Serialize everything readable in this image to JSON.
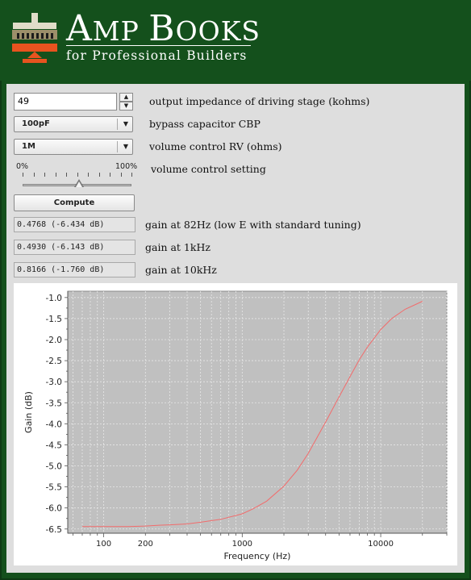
{
  "header": {
    "brand_cap1": "A",
    "brand_rest1": "MP",
    "brand_cap2": "B",
    "brand_rest2": "OOKS",
    "tagline": "for Professional Builders"
  },
  "inputs": {
    "impedance_value": "49",
    "impedance_label": "output impedance of driving stage (kohms)",
    "bypass_value": "100pF",
    "bypass_label": "bypass capacitor CBP",
    "volume_value": "1M",
    "volume_label": "volume control RV (ohms)",
    "slider_min": "0%",
    "slider_max": "100%",
    "slider_label": "volume control setting",
    "slider_position": 0.52
  },
  "compute_label": "Compute",
  "results": [
    {
      "value": "0.4768 (-6.434 dB)",
      "label": "gain at 82Hz (low E with standard tuning)"
    },
    {
      "value": "0.4930 (-6.143 dB)",
      "label": "gain at 1kHz"
    },
    {
      "value": "0.8166 (-1.760 dB)",
      "label": "gain at 10kHz"
    }
  ],
  "colors": {
    "brand_green": "#14501c",
    "logo_orange": "#e8531f",
    "plot_bg": "#c0c0c0",
    "line": "#f26b6b"
  },
  "chart_data": {
    "type": "line",
    "xlabel": "Frequency (Hz)",
    "ylabel": "Gain (dB)",
    "x_scale": "log",
    "xlim": [
      55,
      30000
    ],
    "ylim": [
      -6.6,
      -0.85
    ],
    "x_ticks": [
      100,
      200,
      1000,
      10000
    ],
    "x_tick_labels": [
      "100",
      "200",
      "1000",
      "10000"
    ],
    "y_ticks": [
      -1.0,
      -1.5,
      -2.0,
      -2.5,
      -3.0,
      -3.5,
      -4.0,
      -4.5,
      -5.0,
      -5.5,
      -6.0,
      -6.5
    ],
    "y_tick_labels": [
      "-1.0",
      "-1.5",
      "-2.0",
      "-2.5",
      "-3.0",
      "-3.5",
      "-4.0",
      "-4.5",
      "-5.0",
      "-5.5",
      "-6.0",
      "-6.5"
    ],
    "grid": true,
    "series": [
      {
        "x": [
          70,
          100,
          150,
          200,
          250,
          300,
          400,
          500,
          700,
          1000,
          1200,
          1500,
          2000,
          2500,
          3000,
          4000,
          5000,
          6000,
          7000,
          8000,
          10000,
          12000,
          15000,
          20000
        ],
        "y": [
          -6.44,
          -6.44,
          -6.44,
          -6.43,
          -6.41,
          -6.4,
          -6.38,
          -6.34,
          -6.27,
          -6.14,
          -6.02,
          -5.84,
          -5.48,
          -5.1,
          -4.7,
          -3.96,
          -3.36,
          -2.88,
          -2.48,
          -2.18,
          -1.76,
          -1.5,
          -1.28,
          -1.09
        ]
      }
    ]
  }
}
